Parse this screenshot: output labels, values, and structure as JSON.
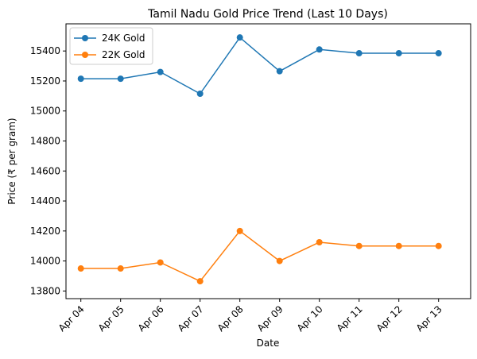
{
  "chart_data": {
    "type": "line",
    "title": "Tamil Nadu Gold Price Trend (Last 10 Days)",
    "xlabel": "Date",
    "ylabel": "Price (₹ per gram)",
    "categories": [
      "Apr 04",
      "Apr 05",
      "Apr 06",
      "Apr 07",
      "Apr 08",
      "Apr 09",
      "Apr 10",
      "Apr 11",
      "Apr 12",
      "Apr 13"
    ],
    "series": [
      {
        "name": "24K Gold",
        "color": "#1f77b4",
        "values": [
          15215,
          15215,
          15260,
          15115,
          15490,
          15265,
          15410,
          15385,
          15385,
          15385
        ]
      },
      {
        "name": "22K Gold",
        "color": "#ff7f0e",
        "values": [
          13950,
          13950,
          13990,
          13865,
          14200,
          14000,
          14125,
          14100,
          14100,
          14100
        ]
      }
    ],
    "ylim": [
      13749,
      15581
    ],
    "yticks": [
      13800,
      14000,
      14200,
      14400,
      14600,
      14800,
      15000,
      15200,
      15400
    ],
    "grid": false,
    "legend": "top-left",
    "marker": "circle"
  }
}
